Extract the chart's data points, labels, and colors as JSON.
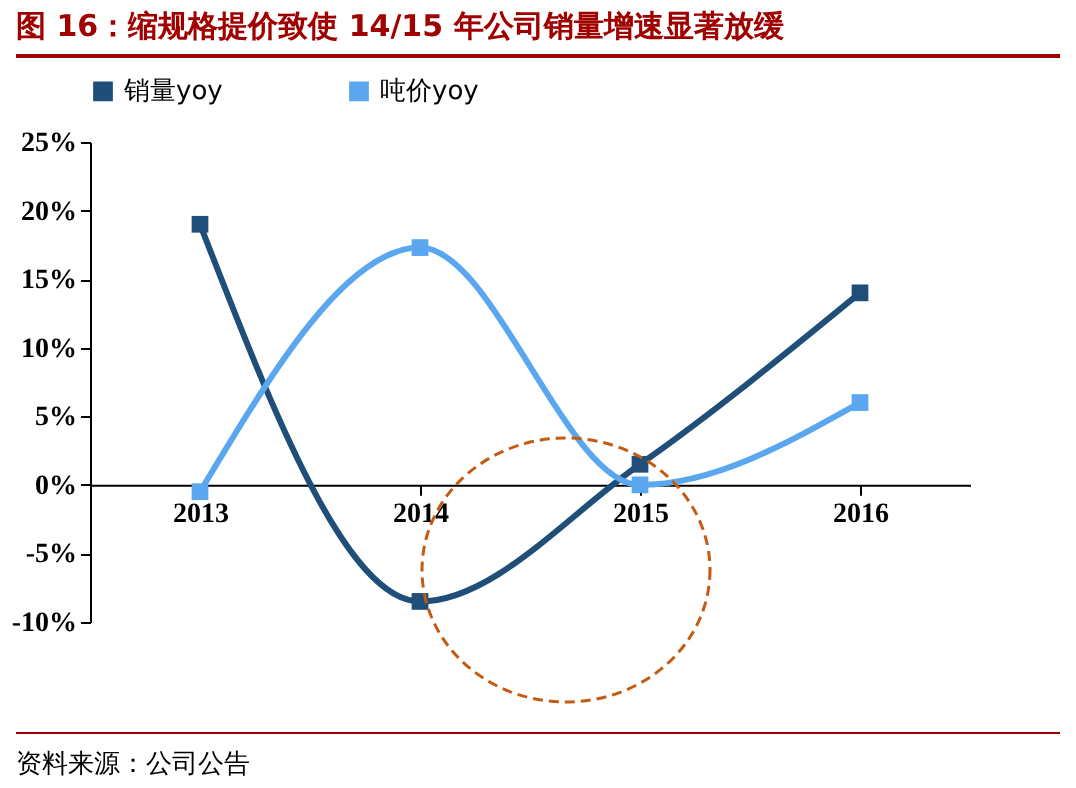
{
  "chart_data": {
    "type": "line",
    "title": "图 16：缩规格提价致使 14/15 年公司销量增速显著放缓",
    "categories": [
      "2013",
      "2014",
      "2015",
      "2016"
    ],
    "series": [
      {
        "name": "销量yoy",
        "color": "#1f4e79",
        "values": [
          19,
          -8.5,
          1.5,
          14
        ]
      },
      {
        "name": "吨价yoy",
        "color": "#5aa7f0",
        "values": [
          -0.5,
          17.3,
          0,
          6
        ]
      }
    ],
    "ylim": [
      -10,
      25
    ],
    "yticks": [
      {
        "value": -10,
        "label": "-10%"
      },
      {
        "value": -5,
        "label": "-5%"
      },
      {
        "value": 0,
        "label": "0%"
      },
      {
        "value": 5,
        "label": "5%"
      },
      {
        "value": 10,
        "label": "10%"
      },
      {
        "value": 15,
        "label": "15%"
      },
      {
        "value": 20,
        "label": "20%"
      },
      {
        "value": 25,
        "label": "25%"
      }
    ],
    "grid": false,
    "legend": "top",
    "marker": "square",
    "line_style": "solid",
    "annotations": [
      "资料来源：公司公告"
    ]
  }
}
